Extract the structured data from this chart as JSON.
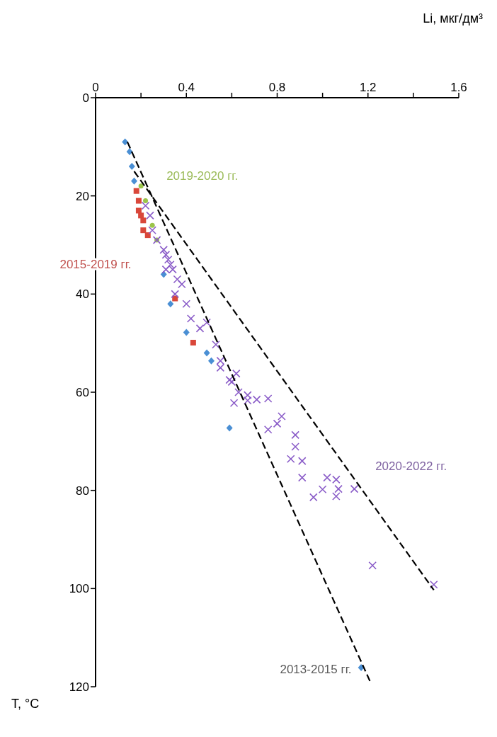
{
  "chart_data": {
    "type": "scatter",
    "xlabel": "Li, мкг/дм³",
    "ylabel": "T, °C",
    "xlim": [
      0,
      1.6
    ],
    "ylim": [
      120,
      0
    ],
    "xticks": [
      0,
      {
        "value": 0.2,
        "label": null
      },
      0.4,
      {
        "value": 0.6,
        "label": null
      },
      0.8,
      {
        "value": 1.0,
        "label": null
      },
      1.2,
      {
        "value": 1.4,
        "label": null
      },
      1.6
    ],
    "yticks": [
      0,
      20,
      40,
      60,
      80,
      100,
      120
    ],
    "grid": false,
    "legend": false,
    "series": [
      {
        "name": "2013-2015 гг.",
        "type": "scatter",
        "marker": "diamond",
        "color": "#4a8fd4",
        "x": [
          0.13,
          0.15,
          0.16,
          0.17,
          0.18,
          0.2,
          0.22,
          0.3,
          0.33,
          0.4,
          0.49,
          0.51,
          0.59,
          1.17
        ],
        "values": [
          9,
          11,
          14,
          17,
          null,
          null,
          null,
          36,
          42,
          47.8,
          52,
          53.6,
          67.3,
          116.1
        ]
      },
      {
        "name": "2015-2019 гг.",
        "type": "scatter",
        "marker": "square",
        "color": "#d9473a",
        "x": [
          0.18,
          0.19,
          0.19,
          0.2,
          0.21,
          0.21,
          0.23,
          0.35,
          0.43
        ],
        "values": [
          19,
          21,
          23,
          24,
          25,
          27,
          28,
          40.9,
          49.9
        ]
      },
      {
        "name": "2019-2020 гг.",
        "type": "scatter",
        "marker": "circle",
        "color": "#9bc44a",
        "x": [
          0.2,
          0.22,
          0.25,
          0.27
        ],
        "values": [
          18,
          21,
          26,
          29
        ]
      },
      {
        "name": "2020-2022 гг.",
        "type": "scatter",
        "marker": "cross",
        "color": "#8a5cc8",
        "x": [
          0.22,
          0.24,
          0.25,
          0.27,
          0.3,
          0.31,
          0.32,
          0.33,
          0.34,
          0.31,
          0.36,
          0.38,
          0.35,
          0.4,
          0.42,
          0.46,
          0.49,
          0.53,
          0.55,
          0.55,
          0.62,
          0.59,
          0.6,
          0.63,
          0.61,
          0.67,
          0.67,
          0.71,
          0.76,
          0.82,
          0.8,
          0.76,
          0.88,
          0.88,
          0.86,
          0.91,
          0.91,
          1.02,
          1.06,
          1.0,
          1.07,
          1.14,
          0.96,
          1.06,
          1.22,
          1.49
        ],
        "values": [
          22,
          24,
          27,
          29,
          31,
          32,
          33,
          34,
          35,
          35,
          37,
          38,
          40,
          42,
          45,
          47,
          45.8,
          50.3,
          53.6,
          55,
          56.2,
          57.5,
          57.9,
          60,
          62.2,
          60.6,
          61.7,
          61.5,
          61.3,
          64.9,
          66.4,
          67.6,
          68.7,
          71.1,
          73.6,
          74,
          77.4,
          77.4,
          77.8,
          79.8,
          79.7,
          79.7,
          81.4,
          81.2,
          95.3,
          99.2
        ]
      },
      {
        "type": "line",
        "marker": "none",
        "line_style": "dashed",
        "color": "#000000",
        "x": [
          0.14,
          1.21
        ],
        "values": [
          9,
          119
        ]
      },
      {
        "type": "line",
        "marker": "none",
        "line_style": "dashed",
        "color": "#000000",
        "x": [
          0.17,
          1.49
        ],
        "values": [
          15,
          100.3
        ]
      }
    ]
  }
}
